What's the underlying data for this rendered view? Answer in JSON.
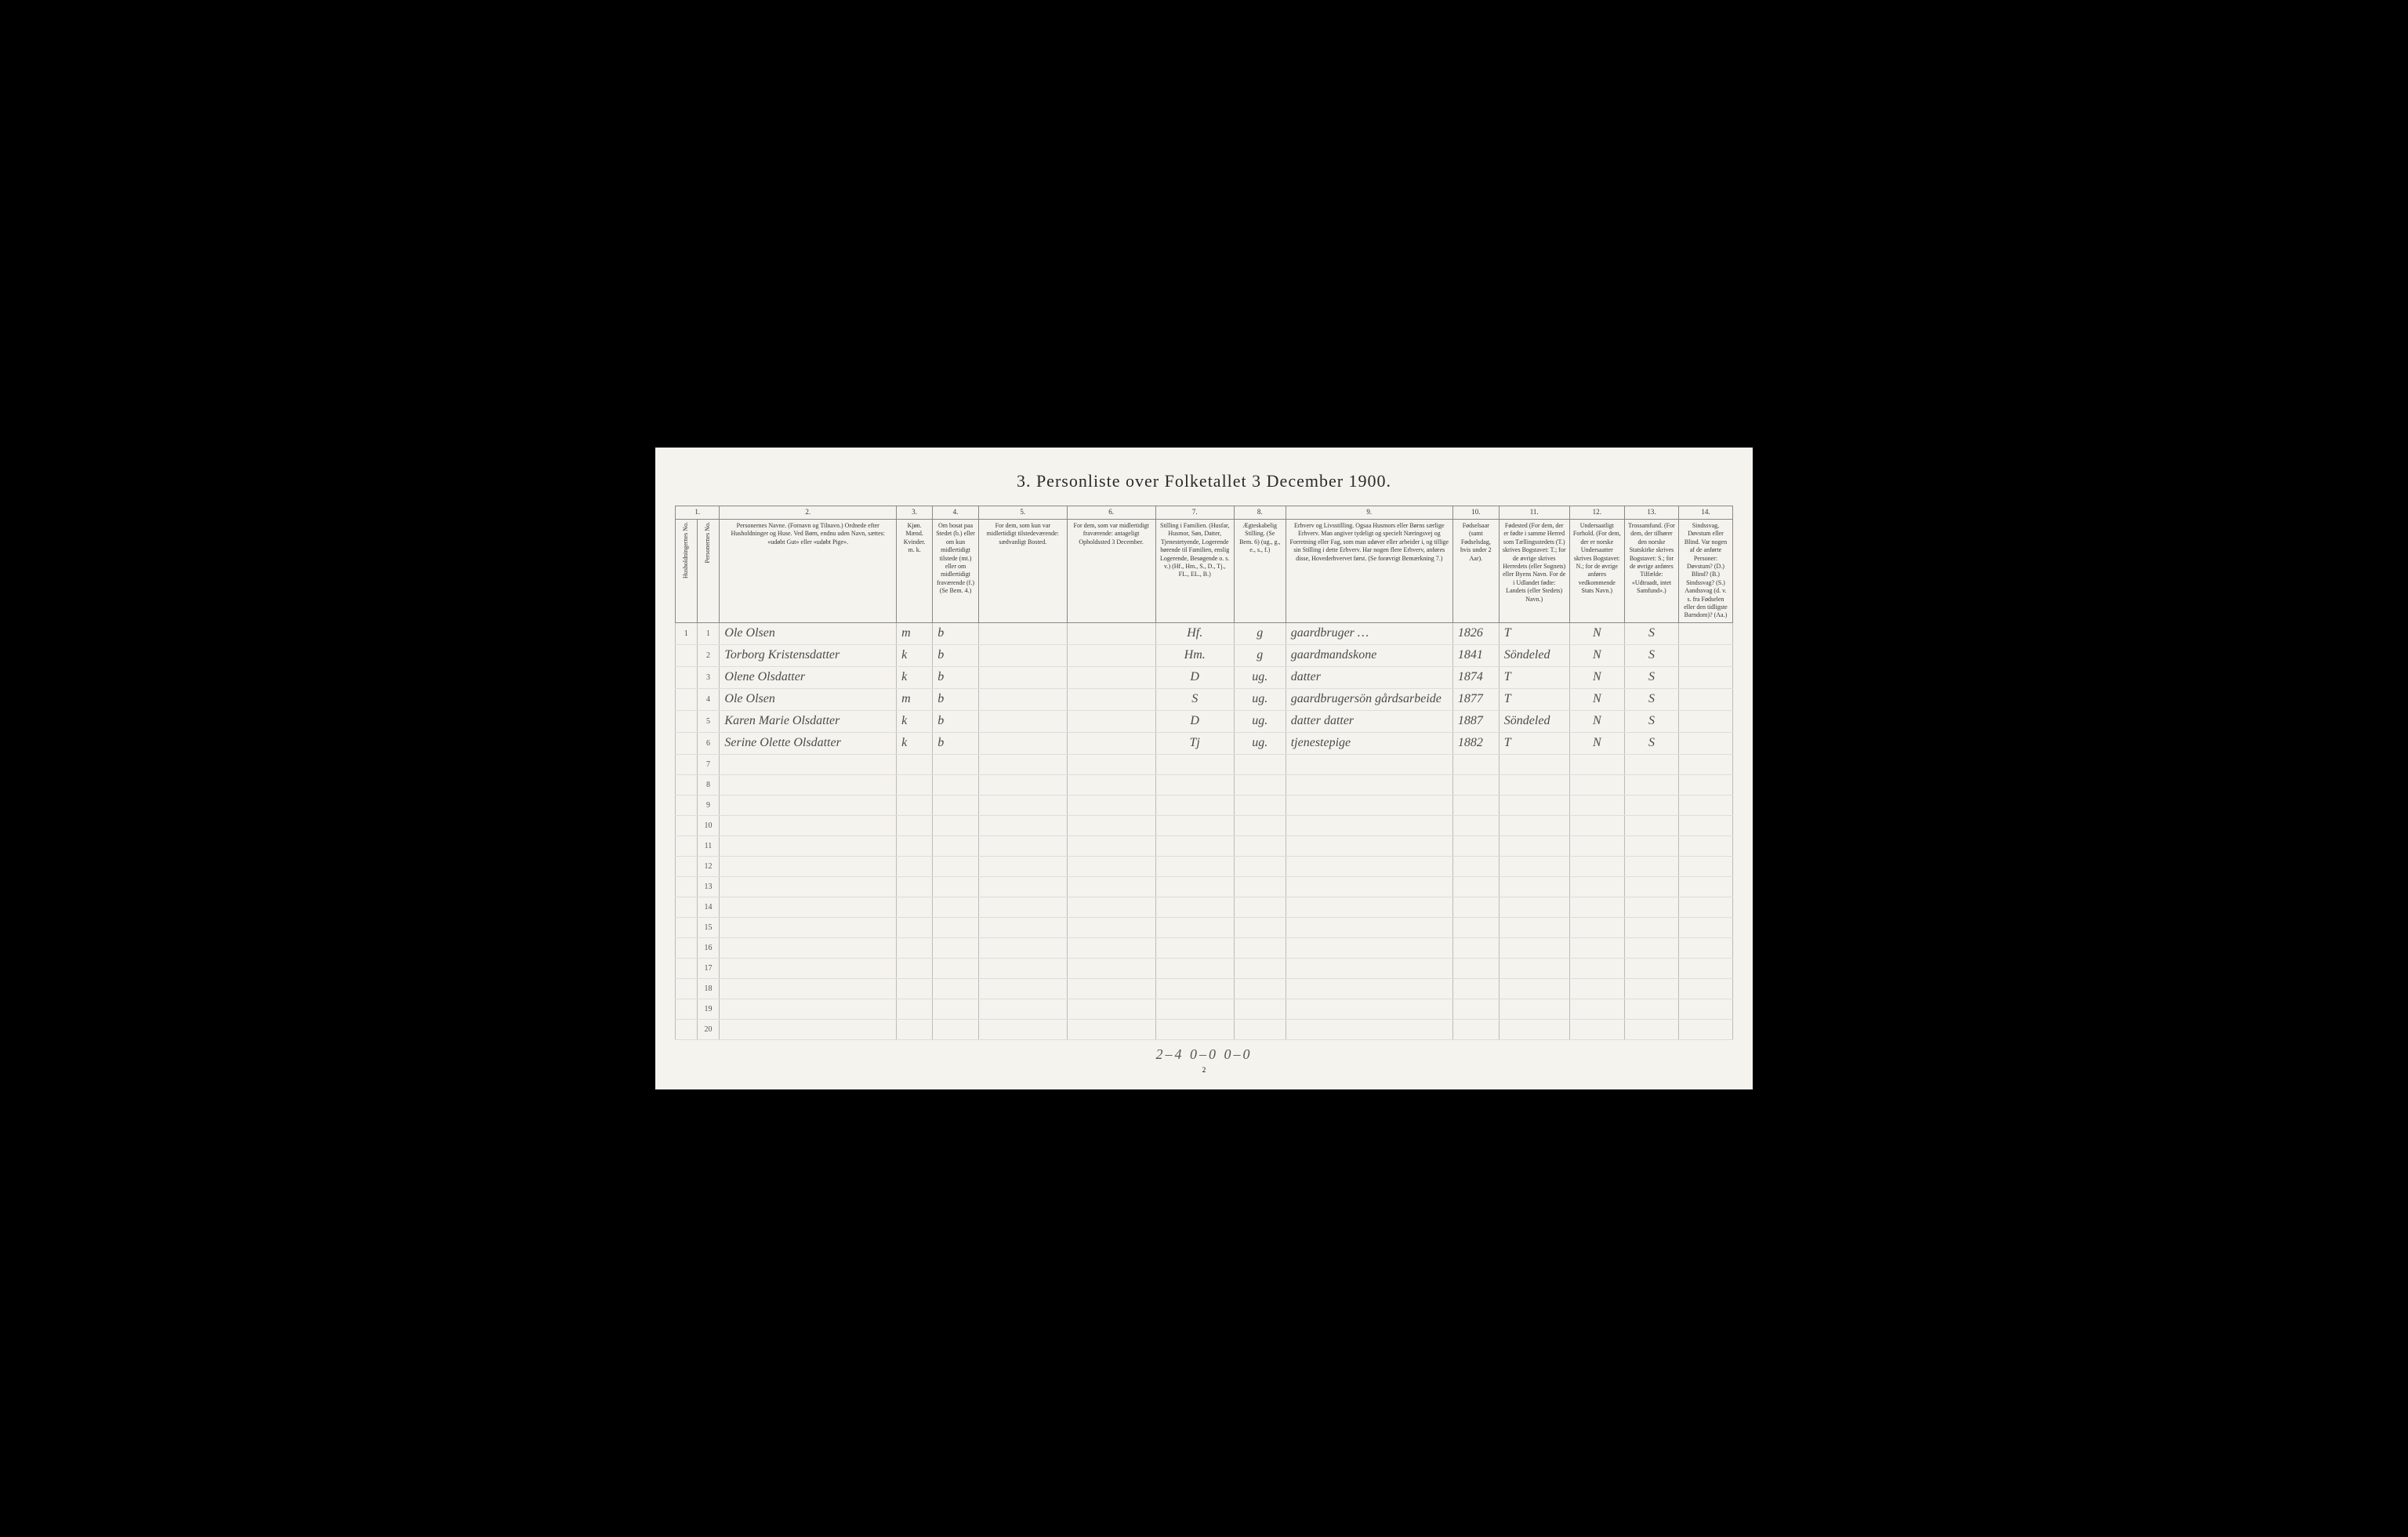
{
  "title": "3.  Personliste over Folketallet 3 December 1900.",
  "column_numbers": [
    "1.",
    "2.",
    "3.",
    "4.",
    "5.",
    "6.",
    "7.",
    "8.",
    "9.",
    "10.",
    "11.",
    "12.",
    "13.",
    "14."
  ],
  "headers": {
    "household_no": "Husholdningernes No.",
    "person_no": "Personernes No.",
    "name": "Personernes Navne.\n(Fornavn og Tilnavn.)\nOrdnede efter Husholdninger og Huse.\nVed Børn, endnu uden Navn, sættes: «udøbt Gut» eller «udøbt Pige».",
    "sex": "Kjøn.\nMænd. Kvinder.\nm.  k.",
    "residence": "Om bosat paa Stedet (b.)\neller om kun midlertidigt tilstede (mt.)\neller om midlertidigt fraværende (f.)\n(Se Bem. 4.)",
    "usual_place": "For dem, som kun var midlertidigt tilstedeværende:\nsædvanligt Bosted.",
    "temp_absent": "For dem, som var midlertidigt fraværende:\nantageligt Opholdssted 3 December.",
    "family_pos": "Stilling i Familien.\n(Husfar, Husmor, Søn, Datter, Tjenestetyende, Logerende hørende til Familien, enslig Logerende, Besøgende o. s. v.)\n(Hf., Hm., S., D., Tj., FL., EL., B.)",
    "marital": "Ægteskabelig Stilling.\n(Se Bem. 6)\n(ug., g., e., s., f.)",
    "occupation": "Erhverv og Livsstilling.\nOgsaa Husmors eller Børns særlige Erhverv.\nMan angiver tydeligt og specielt Næringsvej og Forretning eller Fag, som man udøver eller arbeider i, og tillige sin Stilling i dette Erhverv.\nHar nogen flere Erhverv, anføres disse, Hovederhvervet først.\n(Se forøvrigt Bemærkning 7.)",
    "birth_year": "Fødselsaar\n(samt Fødselsdag, hvis under 2 Aar).",
    "birthplace": "Fødested\n(For dem, der er fødte i samme Herred som Tællingsstedets (T.) skrives Bogstavet: T.; for de øvrige skrives Herredets (eller Sognets) eller Byens Navn.\nFor de i Udlandet fødte: Landets (eller Stedets) Navn.)",
    "nationality": "Undersaatligt Forhold.\n(For dem, der er norske Undersaatter skrives Bogstavet: N.; for de øvrige anføres vedkommende Stats Navn.)",
    "religion": "Trossamfund.\n(For dem, der tilhører den norske Statskirke skrives Bogstavet: S.; for de øvrige anføres Tilfælde: «Udtraadt, intet Samfund».)",
    "disability": "Sindssvag, Døvstum eller Blind.\nVar nogen af de anførte Personer:\nDøvstum? (D.)\nBlind? (B.)\nSindssvag? (S.)\nAandssvag (d. v. s. fra Fødselen eller den tidligste Barndom)? (Aa.)"
  },
  "rows": [
    {
      "hh": "1",
      "no": "1",
      "name": "Ole Olsen",
      "sex": "m",
      "res": "b",
      "loc1": "",
      "loc2": "",
      "fam": "Hf.",
      "mar": "g",
      "occ": "gaardbruger …",
      "year": "1826",
      "birth": "T",
      "nat": "N",
      "rel": "S",
      "dis": ""
    },
    {
      "hh": "",
      "no": "2",
      "name": "Torborg Kristensdatter",
      "sex": "k",
      "res": "b",
      "loc1": "",
      "loc2": "",
      "fam": "Hm.",
      "mar": "g",
      "occ": "gaardmandskone",
      "year": "1841",
      "birth": "Söndeled",
      "nat": "N",
      "rel": "S",
      "dis": ""
    },
    {
      "hh": "",
      "no": "3",
      "name": "Olene Olsdatter",
      "sex": "k",
      "res": "b",
      "loc1": "",
      "loc2": "",
      "fam": "D",
      "mar": "ug.",
      "occ": "datter",
      "year": "1874",
      "birth": "T",
      "nat": "N",
      "rel": "S",
      "dis": ""
    },
    {
      "hh": "",
      "no": "4",
      "name": "Ole Olsen",
      "sex": "m",
      "res": "b",
      "loc1": "",
      "loc2": "",
      "fam": "S",
      "mar": "ug.",
      "occ": "gaardbrugersön gårdsarbeide",
      "year": "1877",
      "birth": "T",
      "nat": "N",
      "rel": "S",
      "dis": ""
    },
    {
      "hh": "",
      "no": "5",
      "name": "Karen Marie Olsdatter",
      "sex": "k",
      "res": "b",
      "loc1": "",
      "loc2": "",
      "fam": "D",
      "mar": "ug.",
      "occ": "datter datter",
      "year": "1887",
      "birth": "Söndeled",
      "nat": "N",
      "rel": "S",
      "dis": ""
    },
    {
      "hh": "",
      "no": "6",
      "name": "Serine Olette Olsdatter",
      "sex": "k",
      "res": "b",
      "loc1": "",
      "loc2": "",
      "fam": "Tj",
      "mar": "ug.",
      "occ": "tjenestepige",
      "year": "1882",
      "birth": "T",
      "nat": "N",
      "rel": "S",
      "dis": ""
    }
  ],
  "empty_rows": [
    7,
    8,
    9,
    10,
    11,
    12,
    13,
    14,
    15,
    16,
    17,
    18,
    19,
    20
  ],
  "footer_note": "2–4   0–0   0–0",
  "page_number": "2",
  "colors": {
    "page_bg": "#f5f3ee",
    "border": "#888888",
    "row_border": "#dddddd",
    "text": "#333333",
    "handwriting": "#4a4a4a"
  }
}
